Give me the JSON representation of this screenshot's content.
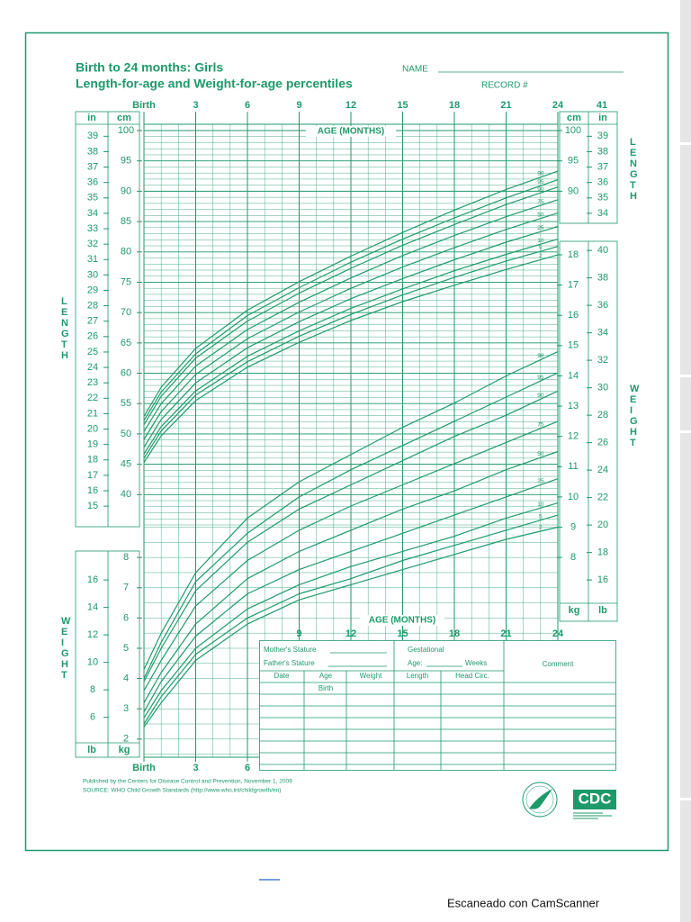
{
  "header": {
    "title": "Birth to 24 months: Girls",
    "subtitle": "Length-for-age and Weight-for-age percentiles",
    "name_label": "NAME",
    "record_label": "RECORD #",
    "corner_number": 41
  },
  "chart_data": [
    {
      "type": "line",
      "xlabel": "AGE (MONTHS)",
      "ylabel": "LENGTH",
      "yunit": "cm",
      "y2unit": "in",
      "x": [
        0,
        1,
        3,
        6,
        9,
        12,
        15,
        18,
        21,
        24
      ],
      "xlim": [
        0,
        24
      ],
      "xticks": [
        {
          "value": 0,
          "label": "Birth"
        },
        3,
        6,
        9,
        12,
        15,
        18,
        21,
        24
      ],
      "ylim": [
        35,
        100
      ],
      "yticks": [
        40,
        45,
        50,
        55,
        60,
        65,
        70,
        75,
        80,
        85,
        90,
        95,
        100
      ],
      "right_yticks": [
        90,
        95,
        100
      ],
      "y2lim": [
        13.78,
        39.37
      ],
      "y2ticks": [
        15,
        16,
        17,
        18,
        19,
        20,
        21,
        22,
        23,
        24,
        25,
        26,
        27,
        28,
        29,
        30,
        31,
        32,
        33,
        34,
        35,
        36,
        37,
        38,
        39
      ],
      "right_y2ticks": [
        34,
        35,
        36,
        37,
        38,
        39
      ],
      "series": [
        {
          "name": "98",
          "color": "#1e9a6a",
          "values": [
            52.9,
            57.7,
            64.1,
            70.4,
            75.1,
            79.3,
            83.2,
            86.9,
            90.3,
            93.3
          ]
        },
        {
          "name": "95",
          "color": "#1e9a6a",
          "values": [
            52.2,
            56.9,
            63.2,
            69.5,
            74.1,
            78.3,
            82.1,
            85.6,
            88.9,
            91.9
          ]
        },
        {
          "name": "90",
          "color": "#1e9a6a",
          "values": [
            51.5,
            56.2,
            62.5,
            68.6,
            73.2,
            77.3,
            81.1,
            84.5,
            87.8,
            90.7
          ]
        },
        {
          "name": "75",
          "color": "#1e9a6a",
          "values": [
            50.4,
            55.0,
            61.2,
            67.2,
            71.7,
            75.7,
            79.4,
            82.7,
            85.8,
            88.6
          ]
        },
        {
          "name": "50",
          "color": "#1e9a6a",
          "values": [
            49.1,
            53.7,
            59.8,
            65.7,
            70.1,
            74.0,
            77.5,
            80.7,
            83.7,
            86.4
          ]
        },
        {
          "name": "25",
          "color": "#1e9a6a",
          "values": [
            47.8,
            52.4,
            58.4,
            64.2,
            68.5,
            72.3,
            75.6,
            78.7,
            81.6,
            84.2
          ]
        },
        {
          "name": "10",
          "color": "#1e9a6a",
          "values": [
            46.7,
            51.2,
            57.1,
            62.8,
            67.0,
            70.7,
            73.9,
            76.9,
            79.6,
            82.1
          ]
        },
        {
          "name": "5",
          "color": "#1e9a6a",
          "values": [
            46.0,
            50.5,
            56.4,
            61.9,
            66.1,
            69.7,
            72.9,
            75.8,
            78.5,
            80.9
          ]
        },
        {
          "name": "2",
          "color": "#1e9a6a",
          "values": [
            45.3,
            49.7,
            55.5,
            61.0,
            65.1,
            68.7,
            71.8,
            74.5,
            77.1,
            79.5
          ]
        }
      ]
    },
    {
      "type": "line",
      "xlabel": "AGE (MONTHS)",
      "ylabel": "WEIGHT",
      "yunit": "kg",
      "y2unit": "lb",
      "x": [
        0,
        1,
        3,
        6,
        9,
        12,
        15,
        18,
        21,
        24
      ],
      "xlim": [
        0,
        24
      ],
      "xticks": [
        {
          "value": 0,
          "label": "Birth"
        },
        3,
        6,
        9,
        12,
        15,
        18,
        21,
        24
      ],
      "ylim": [
        1.4,
        18
      ],
      "yticks": [
        2,
        3,
        4,
        5,
        6,
        7,
        8
      ],
      "right_yticks": [
        8,
        9,
        10,
        11,
        12,
        13,
        14,
        15,
        16,
        17,
        18
      ],
      "y2lim": [
        3.09,
        39.68
      ],
      "y2ticks": [
        6,
        8,
        10,
        12,
        14,
        16
      ],
      "right_y2ticks": [
        16,
        18,
        20,
        22,
        24,
        26,
        28,
        30,
        32,
        34,
        36,
        38,
        40
      ],
      "series": [
        {
          "name": "98",
          "color": "#1e9a6a",
          "values": [
            4.3,
            5.5,
            7.5,
            9.3,
            10.5,
            11.4,
            12.3,
            13.1,
            14.0,
            14.8
          ]
        },
        {
          "name": "95",
          "color": "#1e9a6a",
          "values": [
            4.0,
            5.2,
            7.2,
            8.8,
            10.0,
            10.9,
            11.7,
            12.5,
            13.3,
            14.1
          ]
        },
        {
          "name": "90",
          "color": "#1e9a6a",
          "values": [
            3.9,
            5.0,
            6.9,
            8.5,
            9.6,
            10.4,
            11.2,
            12.0,
            12.7,
            13.5
          ]
        },
        {
          "name": "75",
          "color": "#1e9a6a",
          "values": [
            3.6,
            4.6,
            6.4,
            7.9,
            8.9,
            9.7,
            10.4,
            11.1,
            11.8,
            12.5
          ]
        },
        {
          "name": "50",
          "color": "#1e9a6a",
          "values": [
            3.2,
            4.2,
            5.8,
            7.3,
            8.2,
            8.9,
            9.6,
            10.2,
            10.9,
            11.5
          ]
        },
        {
          "name": "25",
          "color": "#1e9a6a",
          "values": [
            2.9,
            3.9,
            5.4,
            6.8,
            7.6,
            8.2,
            8.8,
            9.4,
            10.0,
            10.6
          ]
        },
        {
          "name": "10",
          "color": "#1e9a6a",
          "values": [
            2.7,
            3.6,
            5.0,
            6.3,
            7.1,
            7.7,
            8.2,
            8.7,
            9.3,
            9.8
          ]
        },
        {
          "name": "5",
          "color": "#1e9a6a",
          "values": [
            2.5,
            3.4,
            4.8,
            6.0,
            6.8,
            7.3,
            7.9,
            8.4,
            8.9,
            9.4
          ]
        },
        {
          "name": "2",
          "color": "#1e9a6a",
          "values": [
            2.4,
            3.2,
            4.6,
            5.8,
            6.6,
            7.1,
            7.6,
            8.1,
            8.6,
            9.0
          ]
        }
      ]
    }
  ],
  "table": {
    "mothers_stature": "Mother's Stature",
    "fathers_stature": "Father's Stature",
    "gestational": "Gestational",
    "age": "Age:",
    "weeks": "Weeks",
    "comment": "Comment",
    "columns": [
      "Date",
      "Age",
      "Weight",
      "Length",
      "Head Circ."
    ],
    "first_age": "Birth"
  },
  "footer": {
    "published": "Published by the Centers for Disease Control and Prevention, November 1, 2009",
    "source": "SOURCE: WHO Child Growth Standards (http://www.who.int/childgrowth/en)",
    "logo": "CDC"
  },
  "scanner": "Escaneado con CamScanner"
}
